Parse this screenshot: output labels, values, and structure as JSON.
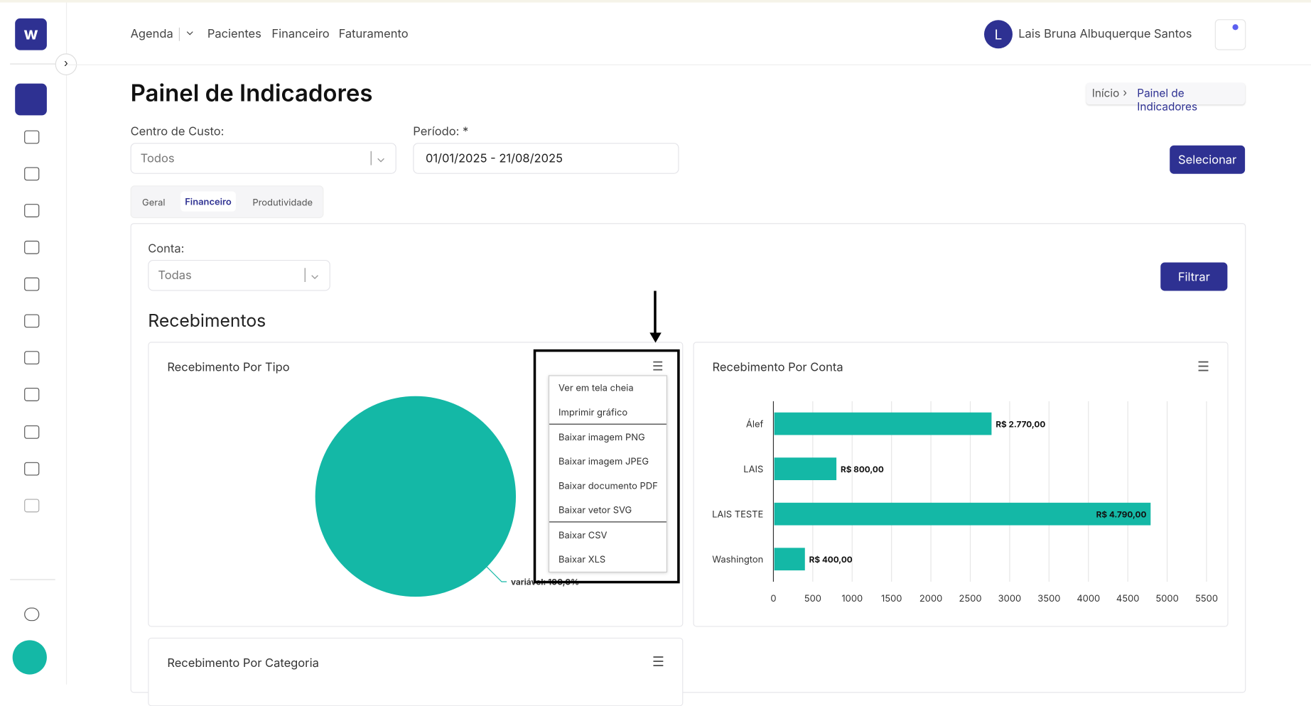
{
  "nav": {
    "links": [
      "Agenda",
      "Pacientes",
      "Financeiro",
      "Faturamento"
    ],
    "user": {
      "initial": "L",
      "name": "Lais Bruna Albuquerque Santos"
    }
  },
  "header": {
    "title": "Painel de Indicadores",
    "breadcrumb": [
      "Início",
      "Painel de Indicadores"
    ]
  },
  "filters": {
    "cost_center_label": "Centro de Custo:",
    "cost_center_value": "Todos",
    "period_label": "Período: *",
    "period_value": "01/01/2025 - 21/08/2025",
    "submit": "Selecionar"
  },
  "tabs": [
    "Geral",
    "Financeiro",
    "Produtividade"
  ],
  "panel": {
    "account_label": "Conta:",
    "account_value": "Todas",
    "filter_button": "Filtrar",
    "section_title": "Recebimentos"
  },
  "export_menu": [
    "Ver em tela cheia",
    "Imprimir gráfico",
    "Baixar imagem PNG",
    "Baixar imagem JPEG",
    "Baixar documento PDF",
    "Baixar vetor SVG",
    "Baixar CSV",
    "Baixar XLS"
  ],
  "extra_card": {
    "title": "Recebimento Por Categoria"
  },
  "chart_data": [
    {
      "type": "pie",
      "title": "Recebimento Por Tipo",
      "categories": [
        "variável"
      ],
      "values": [
        100
      ],
      "value_labels": [
        "variável: 100,0%"
      ],
      "color": "#14b8a6"
    },
    {
      "type": "hbar",
      "title": "Recebimento Por Conta",
      "categories": [
        "Álef",
        "LAIS",
        "LAIS TESTE",
        "Washington"
      ],
      "values": [
        2770,
        800,
        4790,
        400
      ],
      "value_labels": [
        "R$ 2.770,00",
        "R$ 800,00",
        "R$ 4.790,00",
        "R$ 400,00"
      ],
      "color": "#14b8a6",
      "xlim": [
        0,
        5500
      ],
      "xticks": [
        0,
        500,
        1000,
        1500,
        2000,
        2500,
        3000,
        3500,
        4000,
        4500,
        5000,
        5500
      ],
      "grid": true
    }
  ]
}
